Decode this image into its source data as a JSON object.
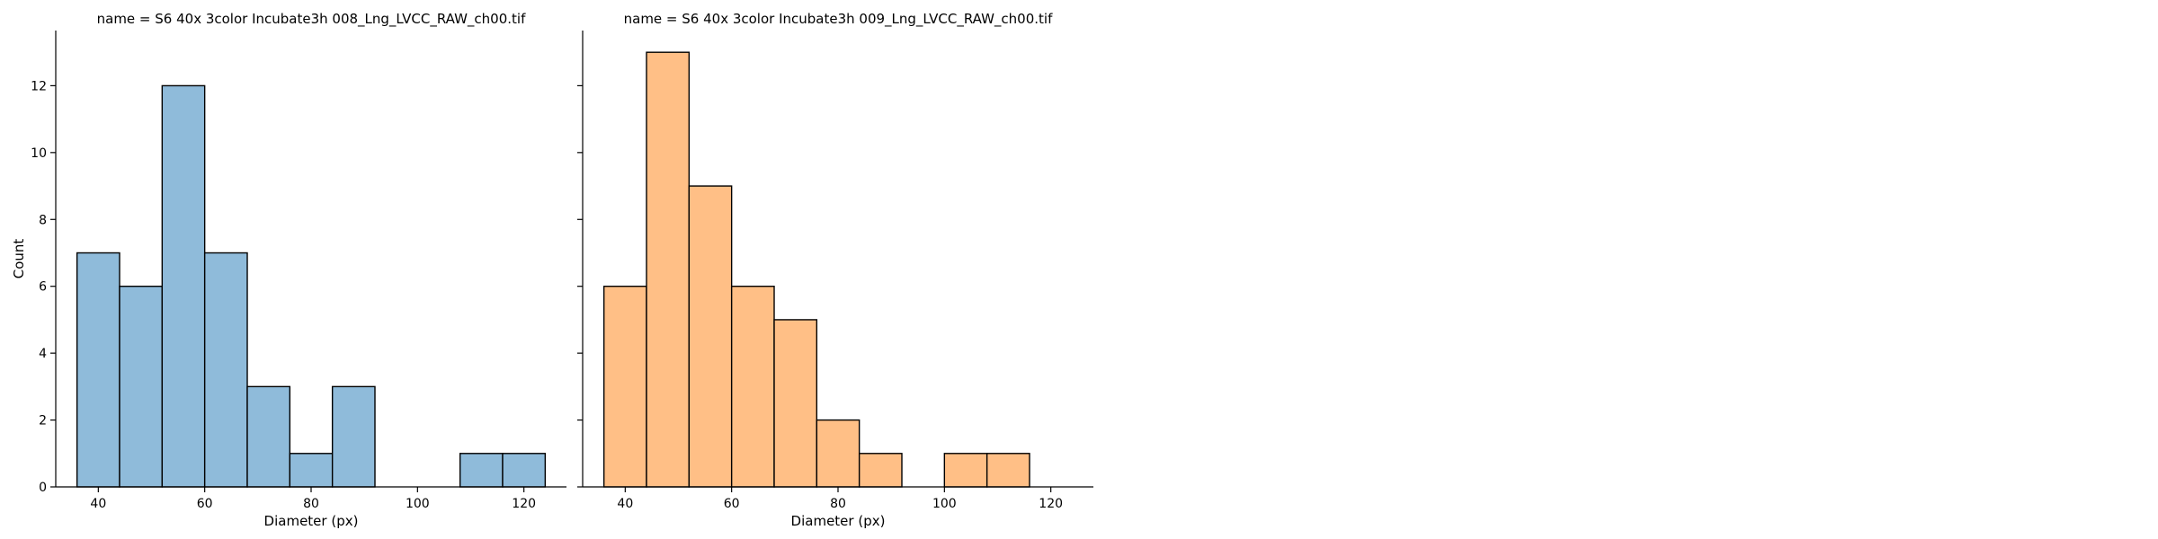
{
  "chart_data": [
    {
      "type": "bar",
      "title": "name = S6 40x 3color Incubate3h 008_Lng_LVCC_RAW_ch00.tif",
      "xlabel": "Diameter (px)",
      "ylabel": "Count",
      "xlim": [
        32,
        128
      ],
      "ylim": [
        0,
        13.65
      ],
      "xticks": [
        40,
        60,
        80,
        100,
        120
      ],
      "yticks": [
        0,
        2,
        4,
        6,
        8,
        10,
        12
      ],
      "bin_edges": [
        36,
        44,
        52,
        60,
        68,
        76,
        84,
        92,
        100,
        108,
        116,
        124
      ],
      "values": [
        7,
        6,
        12,
        7,
        3,
        1,
        3,
        0,
        0,
        1,
        1
      ],
      "color": "#8fbbda"
    },
    {
      "type": "bar",
      "title": "name = S6 40x 3color Incubate3h 009_Lng_LVCC_RAW_ch00.tif",
      "xlabel": "Diameter (px)",
      "ylabel": "",
      "xlim": [
        32,
        128
      ],
      "ylim": [
        0,
        13.65
      ],
      "xticks": [
        40,
        60,
        80,
        100,
        120
      ],
      "yticks": [
        0,
        2,
        4,
        6,
        8,
        10,
        12
      ],
      "bin_edges": [
        36,
        44,
        52,
        60,
        68,
        76,
        84,
        92,
        100,
        108,
        116,
        124
      ],
      "values": [
        6,
        13,
        9,
        6,
        5,
        2,
        1,
        0,
        1,
        1,
        0
      ],
      "color": "#ffbf86"
    }
  ]
}
